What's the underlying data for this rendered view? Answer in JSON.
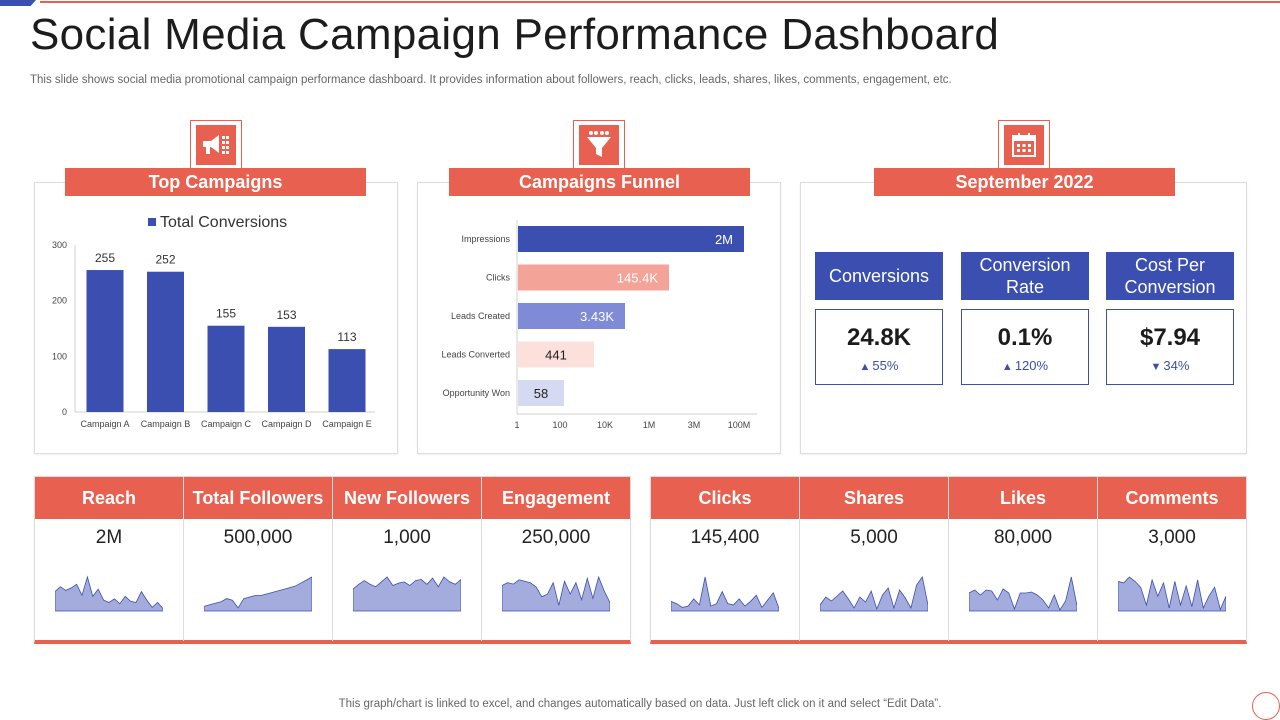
{
  "page": {
    "title": "Social Media Campaign Performance Dashboard",
    "subtitle": "This slide shows social media promotional campaign performance dashboard. It provides information about followers, reach, clicks, leads, shares, likes, comments, engagement, etc.",
    "footer": "This graph/chart is linked to excel,  and changes automatically based on data. Just left click on it and select “Edit Data”."
  },
  "colors": {
    "accent": "#e8604f",
    "primary": "#3a4fb0"
  },
  "panels": {
    "top_campaigns": {
      "header": "Top Campaigns",
      "icon": "megaphone-icon"
    },
    "funnel": {
      "header": "Campaigns Funnel",
      "icon": "funnel-icon"
    },
    "september": {
      "header": "September 2022",
      "icon": "calendar-icon"
    }
  },
  "chart_data": [
    {
      "type": "bar",
      "title": "",
      "legend": "Total Conversions",
      "categories": [
        "Campaign A",
        "Campaign B",
        "Campaign C",
        "Campaign D",
        "Campaign E"
      ],
      "values": [
        255,
        252,
        155,
        153,
        113
      ],
      "value_labels": [
        "255",
        "252",
        "155",
        "153",
        "113"
      ],
      "yticks": [
        "0",
        "100",
        "200",
        "300"
      ],
      "ylim": [
        0,
        300
      ],
      "color": "#3a4fb0"
    },
    {
      "type": "bar",
      "orientation": "horizontal",
      "scale": "log",
      "categories": [
        "Impressions",
        "Clicks",
        "Leads Created",
        "Leads Converted",
        "Opportunity Won"
      ],
      "values": [
        2000000,
        145400,
        3430,
        441,
        58
      ],
      "value_labels": [
        "2M",
        "145.4K",
        "3.43K",
        "441",
        "58"
      ],
      "bar_colors": [
        "#3a4fb0",
        "#f4a399",
        "#7f8bd6",
        "#fbe0dc",
        "#d5d9f2"
      ],
      "label_colors": [
        "#ffffff",
        "#ffffff",
        "#ffffff",
        "#222222",
        "#222222"
      ],
      "xticks": [
        "1",
        "100",
        "10K",
        "1M",
        "3M",
        "100M"
      ],
      "xtick_values": [
        1,
        100,
        10000,
        1000000,
        3000000,
        100000000
      ]
    }
  ],
  "kpis": [
    {
      "label": "Conversions",
      "value": "24.8K",
      "change": "55%",
      "direction": "up"
    },
    {
      "label": "Conversion Rate",
      "value": "0.1%",
      "change": "120%",
      "direction": "up"
    },
    {
      "label": "Cost Per Conversion",
      "value": "$7.94",
      "change": "34%",
      "direction": "down"
    }
  ],
  "metrics_left": [
    {
      "label": "Reach",
      "value": "2M",
      "spark": [
        16,
        20,
        17,
        19,
        22,
        13,
        28,
        12,
        18,
        9,
        7,
        10,
        6,
        12,
        8,
        7,
        16,
        9,
        3,
        7,
        2
      ]
    },
    {
      "label": "Total Followers",
      "value": "500,000",
      "spark": [
        3,
        4,
        5,
        6,
        8,
        7,
        2,
        8,
        9,
        10,
        10,
        11,
        12,
        13,
        14,
        15,
        16,
        18,
        20,
        22
      ]
    },
    {
      "label": "New Followers",
      "value": "1,000",
      "spark": [
        18,
        22,
        25,
        22,
        20,
        24,
        28,
        21,
        23,
        24,
        21,
        25,
        26,
        22,
        27,
        20,
        28,
        24,
        22,
        26
      ]
    },
    {
      "label": "Engagement",
      "value": "250,000",
      "spark": [
        18,
        20,
        19,
        22,
        21,
        20,
        17,
        10,
        12,
        20,
        4,
        21,
        12,
        20,
        8,
        23,
        9,
        24,
        14,
        6
      ]
    }
  ],
  "metrics_right": [
    {
      "label": "Clicks",
      "value": "145,400",
      "spark": [
        8,
        6,
        3,
        4,
        10,
        5,
        28,
        4,
        6,
        16,
        6,
        5,
        10,
        4,
        8,
        13,
        3,
        9,
        15,
        2
      ]
    },
    {
      "label": "Shares",
      "value": "5,000",
      "spark": [
        6,
        14,
        10,
        15,
        20,
        12,
        3,
        14,
        9,
        20,
        2,
        16,
        23,
        3,
        21,
        13,
        3,
        26,
        34,
        6
      ]
    },
    {
      "label": "Likes",
      "value": "80,000",
      "spark": [
        18,
        21,
        16,
        21,
        20,
        11,
        22,
        18,
        2,
        18,
        18,
        19,
        16,
        11,
        3,
        16,
        1,
        10,
        34,
        5
      ]
    },
    {
      "label": "Comments",
      "value": "3,000",
      "spark": [
        20,
        19,
        23,
        20,
        16,
        4,
        21,
        10,
        19,
        2,
        20,
        4,
        17,
        3,
        21,
        2,
        10,
        16,
        1,
        10
      ]
    }
  ]
}
